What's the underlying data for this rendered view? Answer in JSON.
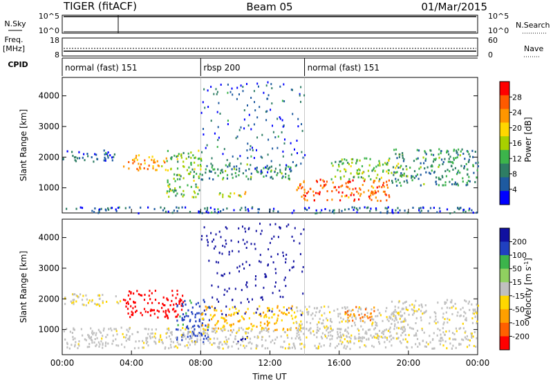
{
  "header": {
    "station": "TIGER (fitACF)",
    "beam": "Beam 05",
    "date": "01/Mar/2015"
  },
  "top_panels": {
    "nsky_label": "N.Sky",
    "nsearch_label": "N.Search",
    "count_ticks": [
      "10^5",
      "10^0"
    ],
    "freq_label": "Freq.",
    "freq_unit": "[MHz]",
    "freq_ticks": [
      "18",
      "8"
    ],
    "nave_label": "Nave",
    "nave_ticks": [
      "60",
      "0"
    ],
    "cpid_label": "CPID",
    "cpid_segments": [
      {
        "name": "normal (fast) 151",
        "start_hour": 0,
        "end_hour": 8
      },
      {
        "name": "rbsp 200",
        "start_hour": 8,
        "end_hour": 14
      },
      {
        "name": "normal (fast) 151",
        "start_hour": 14,
        "end_hour": 24
      }
    ]
  },
  "chart_data": [
    {
      "type": "heatmap",
      "name": "power",
      "ylabel": "Slant Range [km]",
      "xlabel": "",
      "xlim": [
        0,
        24
      ],
      "ylim": [
        180,
        4600
      ],
      "yticks": [
        1000,
        2000,
        3000,
        4000
      ],
      "colorbar_label": "Power [dB]",
      "colorbar_ticks": [
        "28",
        "24",
        "20",
        "16",
        "12",
        "8",
        "4"
      ],
      "colorbar_colors": [
        "#ff0000",
        "#ff5a00",
        "#ff9600",
        "#ffd700",
        "#a8d000",
        "#3cb44b",
        "#2e7d64",
        "#1e5aa0",
        "#0000ff"
      ],
      "blobs": [
        {
          "t0": 0.0,
          "t1": 3.0,
          "r0": 1850,
          "r1": 2250,
          "level": 4
        },
        {
          "t0": 3.5,
          "t1": 6.0,
          "r0": 1600,
          "r1": 2100,
          "level": 20
        },
        {
          "t0": 6.0,
          "t1": 8.0,
          "r0": 700,
          "r1": 2300,
          "level": 12
        },
        {
          "t0": 8.0,
          "t1": 13.5,
          "r0": 1300,
          "r1": 1800,
          "level": 8
        },
        {
          "t0": 9.0,
          "t1": 11.0,
          "r0": 700,
          "r1": 900,
          "level": 16
        },
        {
          "t0": 13.5,
          "t1": 19.0,
          "r0": 600,
          "r1": 1300,
          "level": 24
        },
        {
          "t0": 15.5,
          "t1": 19.5,
          "r0": 1300,
          "r1": 2000,
          "level": 12
        },
        {
          "t0": 19.0,
          "t1": 24.0,
          "r0": 1100,
          "r1": 2300,
          "level": 8
        },
        {
          "t0": 0.0,
          "t1": 24.0,
          "r0": 200,
          "r1": 400,
          "level": 4
        }
      ]
    },
    {
      "type": "heatmap",
      "name": "velocity",
      "ylabel": "Slant Range [km]",
      "xlabel": "Time UT",
      "xlim": [
        0,
        24
      ],
      "ylim": [
        180,
        4600
      ],
      "yticks": [
        1000,
        2000,
        3000,
        4000
      ],
      "xticks": [
        "00:00",
        "04:00",
        "08:00",
        "12:00",
        "16:00",
        "20:00",
        "00:00"
      ],
      "colorbar_label": "Velocity [m s^-1]",
      "colorbar_ticks": [
        "200",
        "100",
        "50",
        "15",
        "-15",
        "-50",
        "-100",
        "-200"
      ],
      "colorbar_colors": [
        "#1010a0",
        "#2040c0",
        "#3cb44b",
        "#90d060",
        "#c0c0c0",
        "#ffd700",
        "#ffa000",
        "#ff6000",
        "#ff0000"
      ],
      "blobs": [
        {
          "t0": 0.0,
          "t1": 3.5,
          "r0": 1800,
          "r1": 2200,
          "vel": -15
        },
        {
          "t0": 3.5,
          "t1": 7.0,
          "r0": 1400,
          "r1": 2300,
          "vel": -200
        },
        {
          "t0": 6.5,
          "t1": 8.5,
          "r0": 600,
          "r1": 2000,
          "vel": 100
        },
        {
          "t0": 8.0,
          "t1": 13.5,
          "r0": 1000,
          "r1": 1800,
          "vel": -50
        },
        {
          "t0": 10.0,
          "t1": 11.0,
          "r0": 600,
          "r1": 800,
          "vel": 200
        },
        {
          "t0": 13.5,
          "t1": 20.0,
          "r0": 700,
          "r1": 1800,
          "vel": 0
        },
        {
          "t0": 16.3,
          "t1": 18.0,
          "r0": 1300,
          "r1": 1800,
          "vel": -100
        },
        {
          "t0": 19.0,
          "t1": 24.0,
          "r0": 1200,
          "r1": 2000,
          "vel": 0
        },
        {
          "t0": 0.0,
          "t1": 24.0,
          "r0": 400,
          "r1": 1100,
          "vel": 0
        }
      ]
    }
  ]
}
